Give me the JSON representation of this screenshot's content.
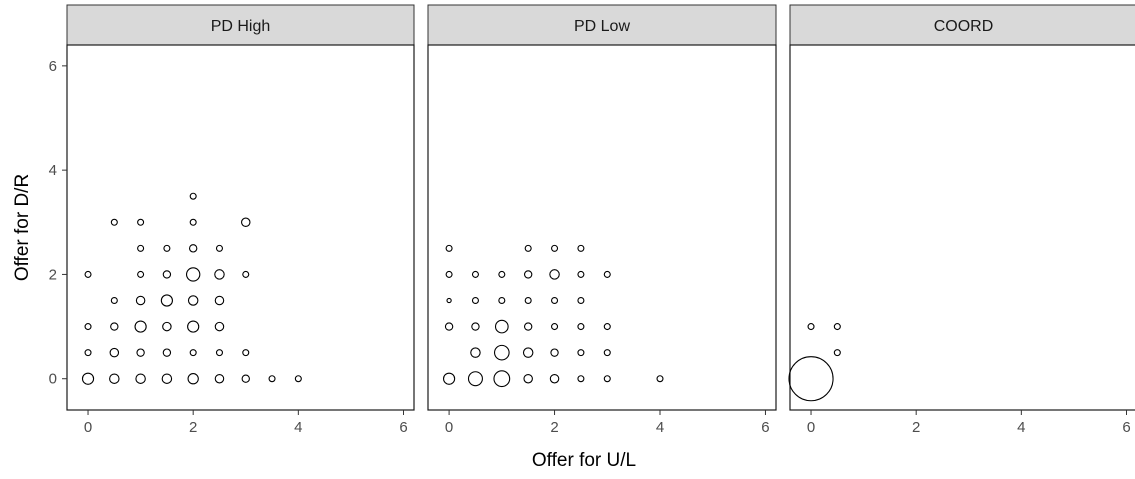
{
  "chart_data": {
    "type": "scatter",
    "encoding": "bubble",
    "xlabel": "Offer for U/L",
    "ylabel": "Offer for D/R",
    "xlim": [
      -0.4,
      6.2
    ],
    "ylim": [
      -0.6,
      6.4
    ],
    "x_ticks": [
      0,
      2,
      4,
      6
    ],
    "y_ticks": [
      0,
      2,
      4,
      6
    ],
    "grid": false,
    "legend": "none",
    "colors": {
      "strip_fill": "#d9d9d9",
      "strip_border": "#333333",
      "panel_border": "#1a1a1a",
      "point_stroke": "#000000",
      "tick_label": "#4d4d4d"
    },
    "panels": [
      {
        "strip_label": "PD High",
        "points": [
          {
            "x": 0,
            "y": 0,
            "size": 7
          },
          {
            "x": 0.5,
            "y": 0,
            "size": 5
          },
          {
            "x": 1,
            "y": 0,
            "size": 5
          },
          {
            "x": 1.5,
            "y": 0,
            "size": 5
          },
          {
            "x": 2,
            "y": 0,
            "size": 6
          },
          {
            "x": 2.5,
            "y": 0,
            "size": 4
          },
          {
            "x": 3,
            "y": 0,
            "size": 3
          },
          {
            "x": 3.5,
            "y": 0,
            "size": 2
          },
          {
            "x": 4,
            "y": 0,
            "size": 2
          },
          {
            "x": 0,
            "y": 0.5,
            "size": 2
          },
          {
            "x": 0.5,
            "y": 0.5,
            "size": 4
          },
          {
            "x": 1,
            "y": 0.5,
            "size": 3
          },
          {
            "x": 1.5,
            "y": 0.5,
            "size": 3
          },
          {
            "x": 2,
            "y": 0.5,
            "size": 2
          },
          {
            "x": 2.5,
            "y": 0.5,
            "size": 2
          },
          {
            "x": 3,
            "y": 0.5,
            "size": 2
          },
          {
            "x": 0,
            "y": 1,
            "size": 2
          },
          {
            "x": 0.5,
            "y": 1,
            "size": 3
          },
          {
            "x": 1,
            "y": 1,
            "size": 7
          },
          {
            "x": 1.5,
            "y": 1,
            "size": 4
          },
          {
            "x": 2,
            "y": 1,
            "size": 7
          },
          {
            "x": 2.5,
            "y": 1,
            "size": 4
          },
          {
            "x": 0.5,
            "y": 1.5,
            "size": 2
          },
          {
            "x": 1,
            "y": 1.5,
            "size": 4
          },
          {
            "x": 1.5,
            "y": 1.5,
            "size": 7
          },
          {
            "x": 2,
            "y": 1.5,
            "size": 5
          },
          {
            "x": 2.5,
            "y": 1.5,
            "size": 4
          },
          {
            "x": 0,
            "y": 2,
            "size": 2
          },
          {
            "x": 1,
            "y": 2,
            "size": 2
          },
          {
            "x": 1.5,
            "y": 2,
            "size": 3
          },
          {
            "x": 2,
            "y": 2,
            "size": 10
          },
          {
            "x": 2.5,
            "y": 2,
            "size": 5
          },
          {
            "x": 3,
            "y": 2,
            "size": 2
          },
          {
            "x": 1,
            "y": 2.5,
            "size": 2
          },
          {
            "x": 1.5,
            "y": 2.5,
            "size": 2
          },
          {
            "x": 2,
            "y": 2.5,
            "size": 3
          },
          {
            "x": 2.5,
            "y": 2.5,
            "size": 2
          },
          {
            "x": 0.5,
            "y": 3,
            "size": 2
          },
          {
            "x": 1,
            "y": 3,
            "size": 2
          },
          {
            "x": 2,
            "y": 3,
            "size": 2
          },
          {
            "x": 3,
            "y": 3,
            "size": 4
          },
          {
            "x": 2,
            "y": 3.5,
            "size": 2
          }
        ]
      },
      {
        "strip_label": "PD Low",
        "points": [
          {
            "x": 0,
            "y": 0,
            "size": 7
          },
          {
            "x": 0.5,
            "y": 0,
            "size": 11
          },
          {
            "x": 1,
            "y": 0,
            "size": 14
          },
          {
            "x": 1.5,
            "y": 0,
            "size": 4
          },
          {
            "x": 2,
            "y": 0,
            "size": 4
          },
          {
            "x": 2.5,
            "y": 0,
            "size": 2
          },
          {
            "x": 3,
            "y": 0,
            "size": 2
          },
          {
            "x": 4,
            "y": 0,
            "size": 2
          },
          {
            "x": 0.5,
            "y": 0.5,
            "size": 5
          },
          {
            "x": 1,
            "y": 0.5,
            "size": 12
          },
          {
            "x": 1.5,
            "y": 0.5,
            "size": 5
          },
          {
            "x": 2,
            "y": 0.5,
            "size": 3
          },
          {
            "x": 2.5,
            "y": 0.5,
            "size": 2
          },
          {
            "x": 3,
            "y": 0.5,
            "size": 2
          },
          {
            "x": 0,
            "y": 1,
            "size": 3
          },
          {
            "x": 0.5,
            "y": 1,
            "size": 3
          },
          {
            "x": 1,
            "y": 1,
            "size": 9
          },
          {
            "x": 1.5,
            "y": 1,
            "size": 3
          },
          {
            "x": 2,
            "y": 1,
            "size": 2
          },
          {
            "x": 2.5,
            "y": 1,
            "size": 2
          },
          {
            "x": 3,
            "y": 1,
            "size": 2
          },
          {
            "x": 0,
            "y": 1.5,
            "size": 1
          },
          {
            "x": 0.5,
            "y": 1.5,
            "size": 2
          },
          {
            "x": 1,
            "y": 1.5,
            "size": 2
          },
          {
            "x": 1.5,
            "y": 1.5,
            "size": 2
          },
          {
            "x": 2,
            "y": 1.5,
            "size": 2
          },
          {
            "x": 2.5,
            "y": 1.5,
            "size": 2
          },
          {
            "x": 0,
            "y": 2,
            "size": 2
          },
          {
            "x": 0.5,
            "y": 2,
            "size": 2
          },
          {
            "x": 1,
            "y": 2,
            "size": 2
          },
          {
            "x": 1.5,
            "y": 2,
            "size": 3
          },
          {
            "x": 2,
            "y": 2,
            "size": 5
          },
          {
            "x": 2.5,
            "y": 2,
            "size": 2
          },
          {
            "x": 3,
            "y": 2,
            "size": 2
          },
          {
            "x": 0,
            "y": 2.5,
            "size": 2
          },
          {
            "x": 1.5,
            "y": 2.5,
            "size": 2
          },
          {
            "x": 2,
            "y": 2.5,
            "size": 2
          },
          {
            "x": 2.5,
            "y": 2.5,
            "size": 2
          }
        ]
      },
      {
        "strip_label": "COORD",
        "points": [
          {
            "x": 0,
            "y": 0,
            "size": 110
          },
          {
            "x": 0.5,
            "y": 0.5,
            "size": 2
          },
          {
            "x": 0,
            "y": 1,
            "size": 2
          },
          {
            "x": 0.5,
            "y": 1,
            "size": 2
          }
        ]
      }
    ]
  }
}
